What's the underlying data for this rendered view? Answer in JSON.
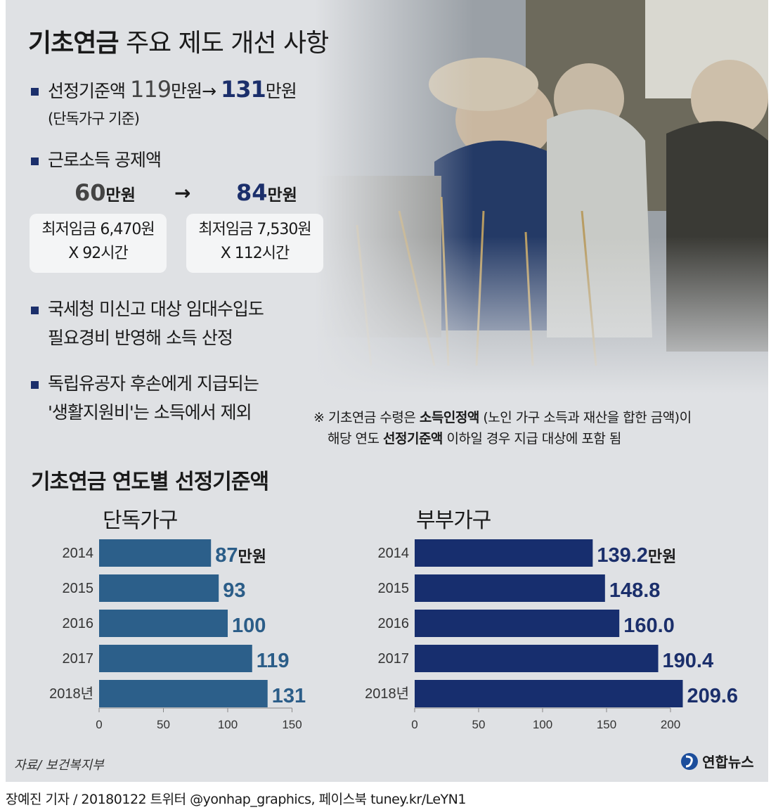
{
  "title": {
    "bold": "기초연금",
    "rest": "주요 제도 개선 사항"
  },
  "items": {
    "i1": {
      "text": "선정기준액",
      "from": "119",
      "unit": "만원",
      "arrow": "→",
      "to": "131",
      "sub": "(단독가구 기준)"
    },
    "i2": {
      "text": "근로소득 공제액",
      "from": "60",
      "to": "84",
      "unit": "만원",
      "arrow": "→",
      "box1_l1": "최저임금 6,470원",
      "box1_l2": "X 92시간",
      "box2_l1": "최저임금 7,530원",
      "box2_l2": "X 112시간"
    },
    "i3": {
      "l1": "국세청 미신고 대상 임대수입도",
      "l2": "필요경비 반영해 소득 산정"
    },
    "i4": {
      "l1": "독립유공자 후손에게 지급되는",
      "l2": "'생활지원비'는 소득에서 제외"
    }
  },
  "note": {
    "l1_a": "※ 기초연금 수령은 ",
    "l1_b": "소득인정액",
    "l1_c": " (노인 가구 소득과 재산을 합한 금액)이",
    "l2_a": "해당 연도 ",
    "l2_b": "선정기준액",
    "l2_c": " 이하일 경우 지급 대상에 포함 됨"
  },
  "colors": {
    "single": "#2c5f8a",
    "couple": "#172e6e",
    "single_label": "#2b5d88",
    "couple_label": "#1b2f6b"
  },
  "chart_data": [
    {
      "type": "bar",
      "orientation": "horizontal",
      "title": "기초연금 연도별 선정기준액",
      "subtitle": "단독가구",
      "categories": [
        "2014",
        "2015",
        "2016",
        "2017",
        "2018년"
      ],
      "values": [
        87,
        93,
        100,
        119,
        131
      ],
      "value_labels": [
        "87",
        "93",
        "100",
        "119",
        "131"
      ],
      "unit": "만원",
      "xlim": [
        0,
        150
      ],
      "ticks": [
        "0",
        "50",
        "100",
        "150"
      ]
    },
    {
      "type": "bar",
      "orientation": "horizontal",
      "subtitle": "부부가구",
      "categories": [
        "2014",
        "2015",
        "2016",
        "2017",
        "2018년"
      ],
      "values": [
        139.2,
        148.8,
        160.0,
        190.4,
        209.6
      ],
      "value_labels": [
        "139.2",
        "148.8",
        "160.0",
        "190.4",
        "209.6"
      ],
      "unit": "만원",
      "xlim": [
        0,
        200
      ],
      "ticks": [
        "0",
        "50",
        "100",
        "150",
        "200"
      ]
    }
  ],
  "source": "자료/ 보건복지부",
  "logo": "연합뉴스",
  "footer": "장예진 기자 / 20180122 트위터 @yonhap_graphics, 페이스북 tuney.kr/LeYN1"
}
